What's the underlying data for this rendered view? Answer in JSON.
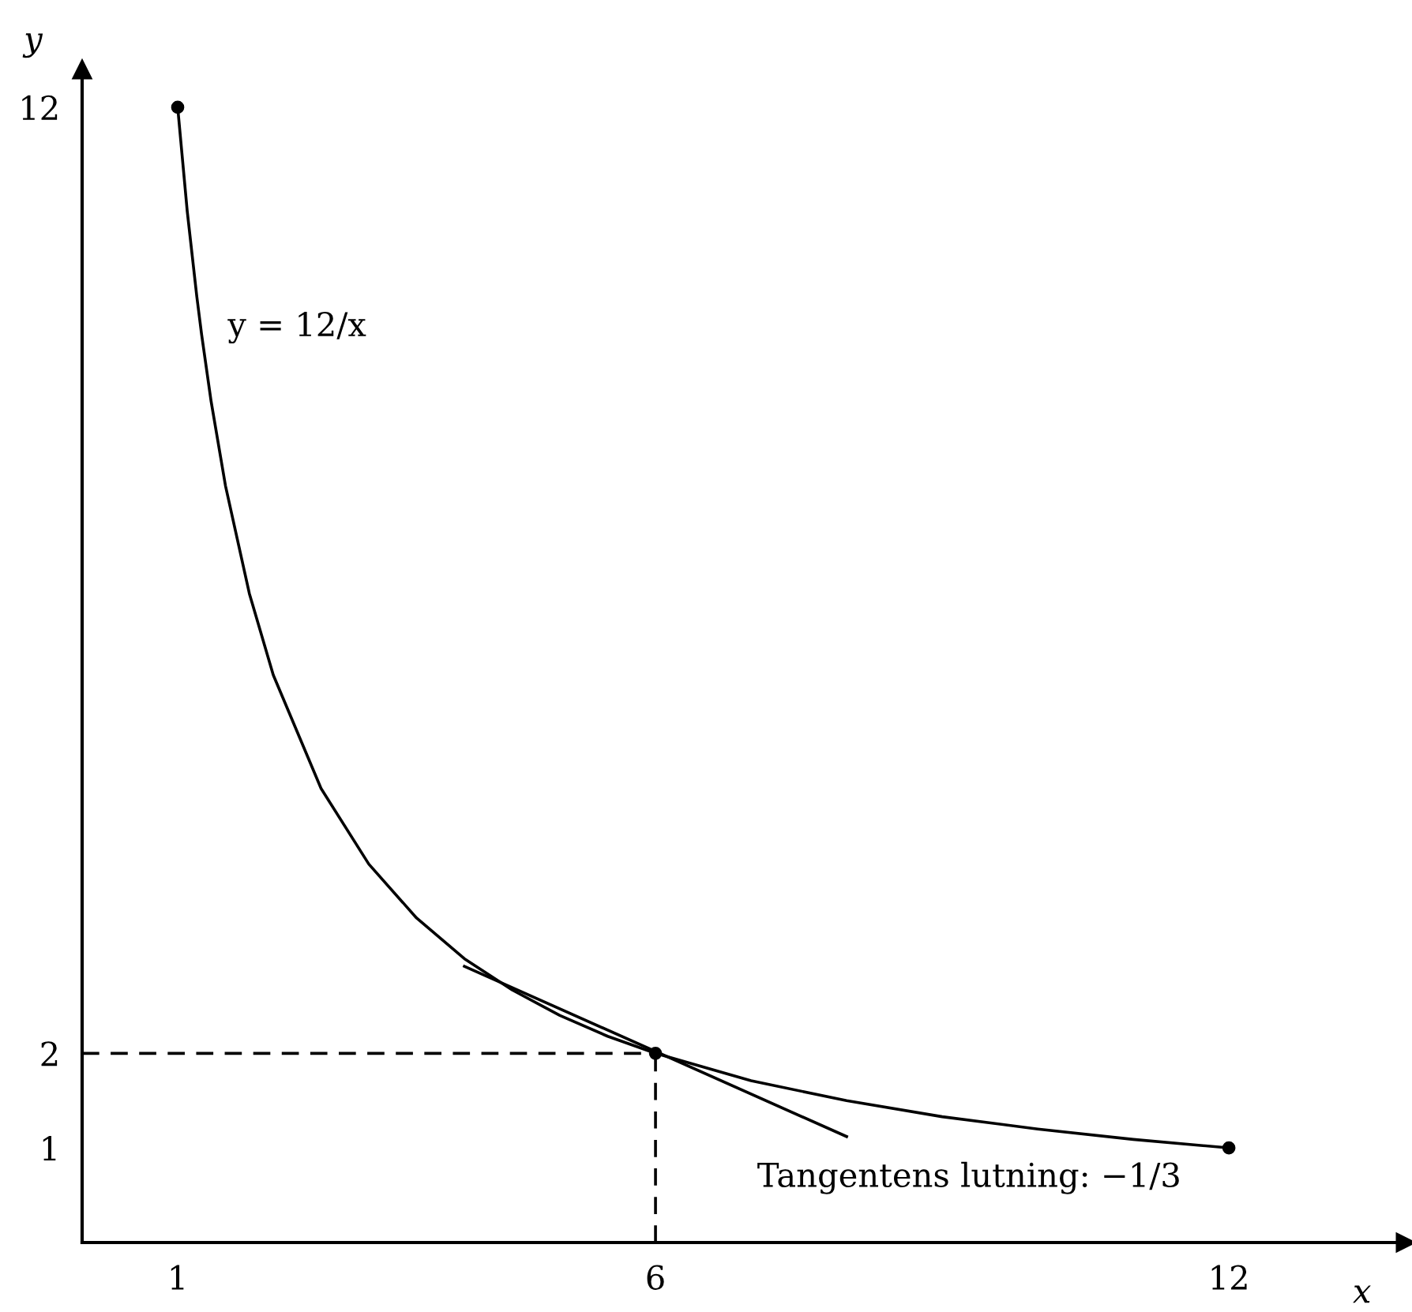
{
  "chart_data": {
    "type": "line",
    "xlabel": "x",
    "ylabel": "y",
    "xlim": [
      0,
      13.85
    ],
    "ylim": [
      0,
      12.4
    ],
    "xticks": [
      1,
      6,
      12
    ],
    "yticks": [
      1,
      2,
      12
    ],
    "grid": false,
    "legend": false,
    "series": [
      {
        "color": "#000000",
        "line_style": "solid",
        "x": [
          1,
          1.1,
          1.2,
          1.25,
          1.35,
          1.5,
          1.75,
          2,
          2.5,
          3,
          3.5,
          4,
          4.5,
          5,
          5.5,
          6,
          7,
          8,
          9,
          10,
          11,
          12
        ],
        "values": [
          12,
          10.9,
          10,
          9.6,
          8.89,
          8,
          6.86,
          6,
          4.8,
          4,
          3.43,
          3,
          2.67,
          2.4,
          2.18,
          2,
          1.71,
          1.5,
          1.33,
          1.2,
          1.09,
          1
        ]
      },
      {
        "color": "#000000",
        "line_style": "solid",
        "x": [
          4,
          8
        ],
        "values": [
          2.92,
          1.12
        ]
      },
      {
        "color": "#000000",
        "line_style": "dashed",
        "x": [
          0,
          6
        ],
        "values": [
          2,
          2
        ]
      },
      {
        "color": "#000000",
        "line_style": "dashed",
        "x": [
          6,
          6
        ],
        "values": [
          0,
          2
        ]
      },
      {
        "type": "scatter",
        "color": "#000000",
        "marker": "circle",
        "x": [
          1,
          6,
          12
        ],
        "values": [
          12,
          2,
          1
        ]
      }
    ],
    "annotations": [
      "y = 12/x",
      "Tangentens lutning: −1/3"
    ]
  }
}
